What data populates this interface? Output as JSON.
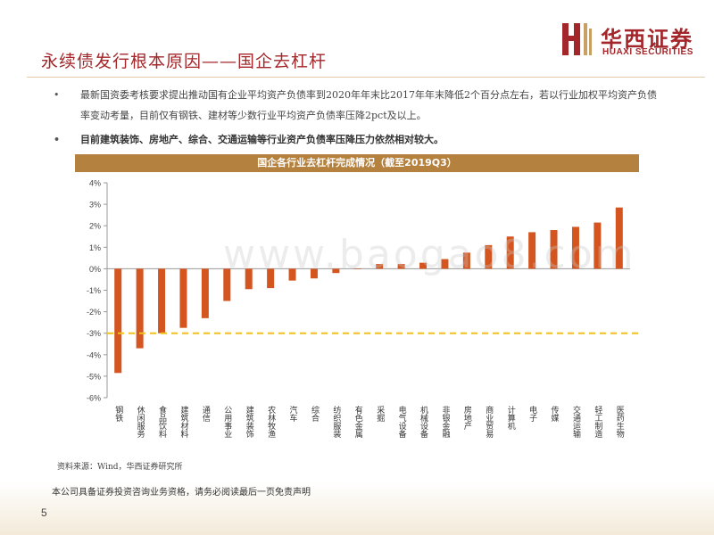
{
  "page": {
    "title": "永续债发行根本原因——国企去杠杆",
    "page_number": "5",
    "disclaimer": "本公司具备证券投资咨询业务资格，请务必阅读最后一页免责声明",
    "watermark": "www.baogao8.com"
  },
  "logo": {
    "name_cn": "华西证券",
    "name_en": "HUAXI SECURITIES",
    "mark_color": "#a3262a",
    "accent_color": "#c9a063"
  },
  "bullets": [
    {
      "marker": "•",
      "text": "最新国资委考核要求提出推动国有企业平均资产负债率到2020年年末比2017年年末降低2个百分点左右，若以行业加权平均资产负债率变动考量，目前仅有钢铁、建材等少数行业平均资产负债率压降2pct及以上。"
    },
    {
      "marker": "•",
      "text": "目前建筑装饰、房地产、综合、交通运输等行业资产负债率压降压力依然相对较大。"
    }
  ],
  "chart_banner": "国企各行业去杠杆完成情况（截至2019Q3）",
  "source": "资料来源：Wind，华西证券研究所",
  "chart_data": {
    "type": "bar",
    "title": "国企各行业去杠杆完成情况（截至2019Q3）",
    "categories": [
      "钢铁",
      "休闲服务",
      "食品饮料",
      "建筑材料",
      "通信",
      "公用事业",
      "建筑装饰",
      "农林牧渔",
      "汽车",
      "综合",
      "纺织服装",
      "有色金属",
      "采掘",
      "电气设备",
      "机械设备",
      "非银金融",
      "房地产",
      "商业贸易",
      "计算机",
      "电子",
      "传媒",
      "交通运输",
      "轻工制造",
      "医药生物"
    ],
    "values": [
      -4.85,
      -3.7,
      -3.0,
      -2.75,
      -2.3,
      -1.5,
      -0.95,
      -0.9,
      -0.55,
      -0.45,
      -0.2,
      0.0,
      0.22,
      0.22,
      0.28,
      0.45,
      0.75,
      1.1,
      1.5,
      1.7,
      1.8,
      1.95,
      2.15,
      2.85
    ],
    "ylim": [
      -6,
      4
    ],
    "yticks": [
      4,
      3,
      2,
      1,
      0,
      -1,
      -2,
      -3,
      -4,
      -5,
      -6
    ],
    "ytick_labels": [
      "4%",
      "3%",
      "2%",
      "1%",
      "0%",
      "-1%",
      "-2%",
      "-3%",
      "-4%",
      "-5%",
      "-6%"
    ],
    "reference_line": -3,
    "bar_color": "#d4551f",
    "reference_color": "#f0c020",
    "xlabel": "",
    "ylabel": "",
    "grid": false
  }
}
